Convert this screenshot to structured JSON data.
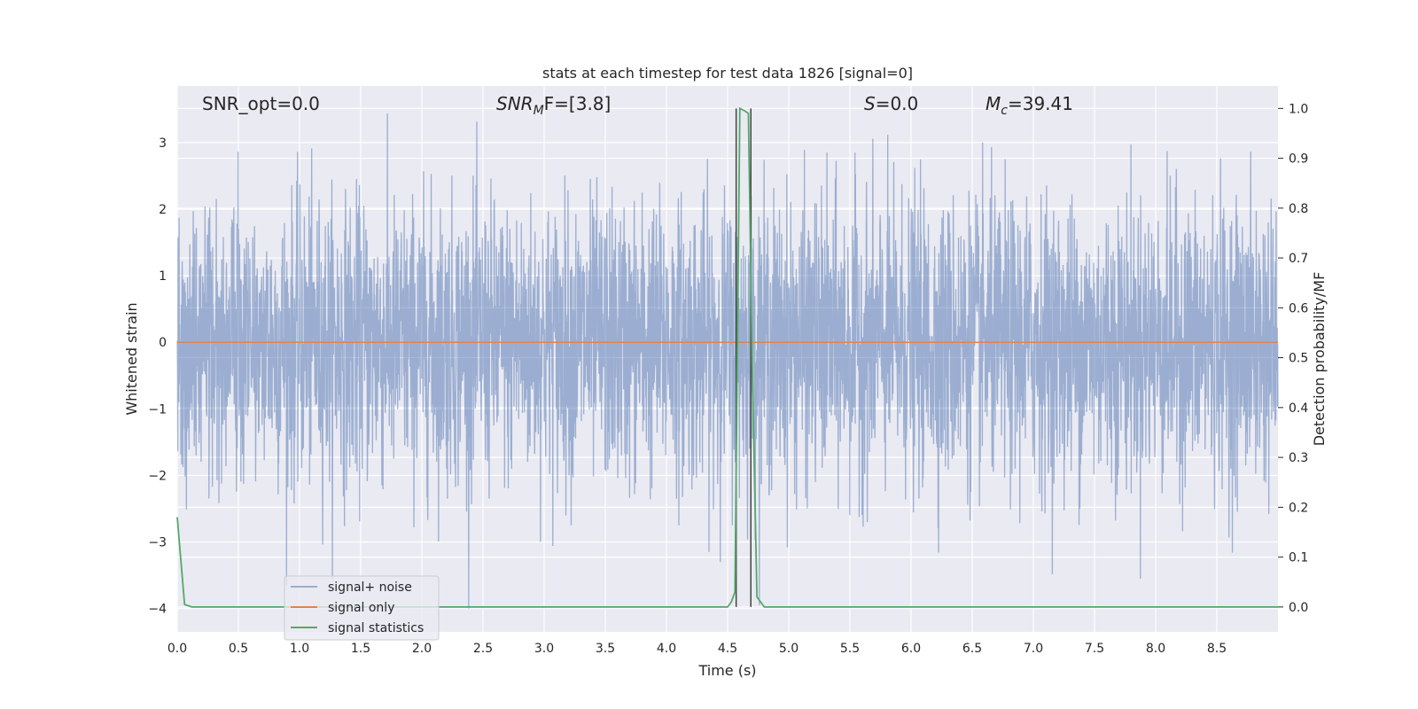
{
  "chart_data": {
    "type": "line",
    "title": "stats at each timestep for test data 1826 [signal=0]",
    "xlabel": "Time (s)",
    "ylabel": "Whitened strain",
    "ylabel_right": "Detection probability/MF",
    "xlim": [
      0.0,
      9.0
    ],
    "ylim": [
      -4.35,
      3.85
    ],
    "ylim_right": [
      -0.05,
      1.045
    ],
    "x_ticks": [
      0.0,
      0.5,
      1.0,
      1.5,
      2.0,
      2.5,
      3.0,
      3.5,
      4.0,
      4.5,
      5.0,
      5.5,
      6.0,
      6.5,
      7.0,
      7.5,
      8.0,
      8.5
    ],
    "x_tick_labels": [
      "0.0",
      "0.5",
      "1.0",
      "1.5",
      "2.0",
      "2.5",
      "3.0",
      "3.5",
      "4.0",
      "4.5",
      "5.0",
      "5.5",
      "6.0",
      "6.5",
      "7.0",
      "7.5",
      "8.0",
      "8.5"
    ],
    "y_ticks": [
      3,
      2,
      1,
      0,
      -1,
      -2,
      -3,
      -4
    ],
    "y_tick_labels": [
      "3",
      "2",
      "1",
      "0",
      "−1",
      "−2",
      "−3",
      "−4"
    ],
    "y_right_ticks": [
      1.0,
      0.9,
      0.8,
      0.7,
      0.6,
      0.5,
      0.4,
      0.3,
      0.2,
      0.1,
      0.0
    ],
    "y_right_tick_labels": [
      "1.0",
      "0.9",
      "0.8",
      "0.7",
      "0.6",
      "0.5",
      "0.4",
      "0.3",
      "0.2",
      "0.1",
      "0.0"
    ],
    "grid": true,
    "legend_position": "lower-left",
    "annotations": {
      "snr_opt": "SNR_opt=0.0",
      "snr_mf_base": "SNR",
      "snr_mf_sub": "M",
      "snr_mf_rest": "F=[3.8]",
      "s_sym": "S",
      "s_val": "=0.0",
      "mc_sym": "M",
      "mc_sub": "c",
      "mc_val": "=39.41"
    },
    "vlines": [
      4.57,
      4.69
    ],
    "series": [
      {
        "name": "signal+ noise",
        "color": "#4c72b0",
        "description_range": [
          -4.0,
          3.5
        ],
        "noise_sigma": 1.0,
        "x_range": [
          0.0,
          9.0
        ]
      },
      {
        "name": "signal only",
        "color": "#dd8452",
        "x": [
          0.0,
          9.0
        ],
        "y": [
          0.0,
          0.0
        ]
      },
      {
        "name": "signal statistics",
        "color": "#55a868",
        "axis": "right",
        "x": [
          0.0,
          0.06,
          0.12,
          0.5,
          1.0,
          1.5,
          2.0,
          2.5,
          3.0,
          3.5,
          4.0,
          4.5,
          4.53,
          4.56,
          4.6,
          4.64,
          4.67,
          4.7,
          4.74,
          4.8,
          5.0,
          5.5,
          6.0,
          6.5,
          7.0,
          7.5,
          8.0,
          8.5,
          9.0
        ],
        "y": [
          0.18,
          0.005,
          0.0,
          0.0,
          0.0,
          0.0,
          0.0,
          0.0,
          0.0,
          0.0,
          0.0,
          0.0,
          0.01,
          0.03,
          1.0,
          0.995,
          0.99,
          0.5,
          0.02,
          0.0,
          0.0,
          0.0,
          0.0,
          0.0,
          0.0,
          0.0,
          0.0,
          0.0,
          0.0
        ]
      }
    ],
    "colors": {
      "background": "#eaeaf2",
      "grid": "#ffffff",
      "vline": "#444444"
    }
  }
}
